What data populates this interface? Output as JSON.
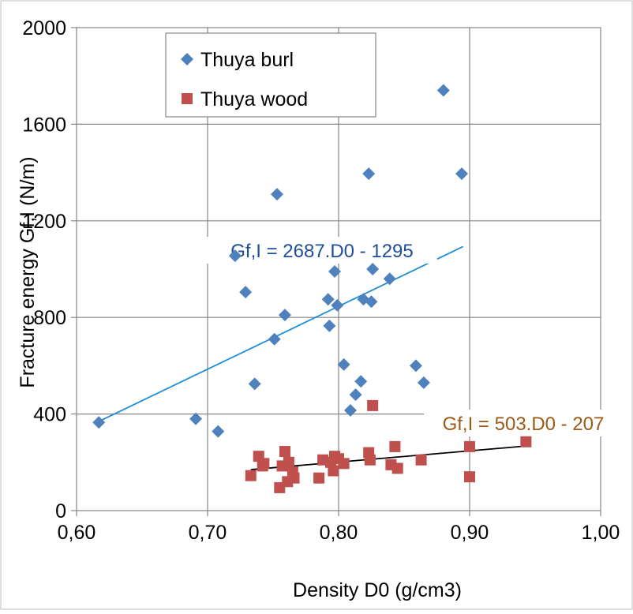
{
  "chart_data": {
    "type": "scatter",
    "xlabel": "Density D0 (g/cm3)",
    "ylabel": "Fracture energy Gf,I (N/m)",
    "xlim": [
      0.6,
      1.0
    ],
    "ylim": [
      0,
      2000
    ],
    "x_ticks": [
      "0,60",
      "0,70",
      "0,80",
      "0,90",
      "1,00"
    ],
    "y_ticks": [
      "0",
      "400",
      "800",
      "1200",
      "1600",
      "2000"
    ],
    "grid": true,
    "legend_position": "top-left",
    "series": [
      {
        "name": "Thuya burl",
        "marker": "diamond",
        "color": "#4f81bd",
        "trendline": {
          "label": "Gf,I  = 2687.D0 - 1295",
          "x_range": [
            0.617,
            0.895
          ],
          "color": "#1f8dd6",
          "label_color": "#1f4e9a"
        },
        "points": [
          [
            0.617,
            365
          ],
          [
            0.691,
            380
          ],
          [
            0.708,
            328
          ],
          [
            0.721,
            1055
          ],
          [
            0.729,
            905
          ],
          [
            0.736,
            525
          ],
          [
            0.751,
            710
          ],
          [
            0.753,
            1310
          ],
          [
            0.759,
            810
          ],
          [
            0.792,
            875
          ],
          [
            0.793,
            765
          ],
          [
            0.797,
            990
          ],
          [
            0.799,
            850
          ],
          [
            0.804,
            605
          ],
          [
            0.809,
            415
          ],
          [
            0.813,
            480
          ],
          [
            0.817,
            535
          ],
          [
            0.819,
            875
          ],
          [
            0.823,
            1395
          ],
          [
            0.825,
            865
          ],
          [
            0.826,
            1000
          ],
          [
            0.839,
            960
          ],
          [
            0.859,
            600
          ],
          [
            0.865,
            530
          ],
          [
            0.88,
            1740
          ],
          [
            0.894,
            1395
          ]
        ]
      },
      {
        "name": "Thuya wood",
        "marker": "square",
        "color": "#c0504d",
        "trendline": {
          "label": "Gf,I  = 503.D0 - 207",
          "x_range": [
            0.733,
            0.945
          ],
          "color": "#000000",
          "label_color": "#9c5a17"
        },
        "points": [
          [
            0.733,
            145
          ],
          [
            0.739,
            225
          ],
          [
            0.742,
            185
          ],
          [
            0.743,
            195
          ],
          [
            0.755,
            95
          ],
          [
            0.757,
            185
          ],
          [
            0.759,
            245
          ],
          [
            0.761,
            120
          ],
          [
            0.762,
            200
          ],
          [
            0.765,
            160
          ],
          [
            0.766,
            135
          ],
          [
            0.785,
            135
          ],
          [
            0.788,
            210
          ],
          [
            0.794,
            200
          ],
          [
            0.796,
            165
          ],
          [
            0.797,
            225
          ],
          [
            0.8,
            215
          ],
          [
            0.804,
            195
          ],
          [
            0.823,
            240
          ],
          [
            0.824,
            210
          ],
          [
            0.826,
            435
          ],
          [
            0.84,
            190
          ],
          [
            0.843,
            265
          ],
          [
            0.845,
            175
          ],
          [
            0.863,
            210
          ],
          [
            0.9,
            265
          ],
          [
            0.9,
            140
          ],
          [
            0.943,
            285
          ]
        ]
      }
    ]
  }
}
